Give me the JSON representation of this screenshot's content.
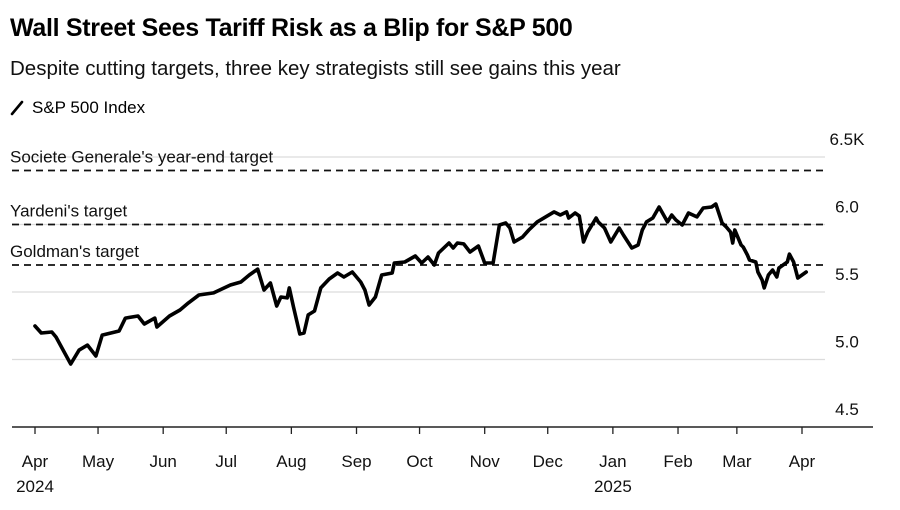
{
  "title": "Wall Street Sees Tariff Risk as a Blip for S&P 500",
  "subtitle": "Despite cutting targets, three key strategists still see gains this year",
  "legend": {
    "label": "S&P 500 Index",
    "icon": "line-icon"
  },
  "chart_data": {
    "type": "line",
    "title": "Wall Street Sees Tariff Risk as a Blip for S&P 500",
    "subtitle": "Despite cutting targets, three key strategists still see gains this year",
    "xlabel": "",
    "ylabel": "",
    "ylim": [
      4500,
      6500
    ],
    "grid": true,
    "legend_position": "top-left",
    "y_ticks": [
      {
        "value": 6500,
        "label": "6.5K"
      },
      {
        "value": 6000,
        "label": "6.0"
      },
      {
        "value": 5500,
        "label": "5.5"
      },
      {
        "value": 5000,
        "label": "5.0"
      },
      {
        "value": 4500,
        "label": "4.5"
      }
    ],
    "x_range": [
      "2024-04-01",
      "2025-05-06"
    ],
    "x_ticks": [
      {
        "date": "2024-04-01",
        "label": "Apr",
        "sublabel": "2024"
      },
      {
        "date": "2024-05-01",
        "label": "May",
        "sublabel": ""
      },
      {
        "date": "2024-06-01",
        "label": "Jun",
        "sublabel": ""
      },
      {
        "date": "2024-07-01",
        "label": "Jul",
        "sublabel": ""
      },
      {
        "date": "2024-08-01",
        "label": "Aug",
        "sublabel": ""
      },
      {
        "date": "2024-09-01",
        "label": "Sep",
        "sublabel": ""
      },
      {
        "date": "2024-10-01",
        "label": "Oct",
        "sublabel": ""
      },
      {
        "date": "2024-11-01",
        "label": "Nov",
        "sublabel": ""
      },
      {
        "date": "2024-12-01",
        "label": "Dec",
        "sublabel": ""
      },
      {
        "date": "2025-01-01",
        "label": "Jan",
        "sublabel": "2025"
      },
      {
        "date": "2025-02-01",
        "label": "Feb",
        "sublabel": ""
      },
      {
        "date": "2025-03-01",
        "label": "Mar",
        "sublabel": ""
      },
      {
        "date": "2025-04-01",
        "label": "Apr",
        "sublabel": ""
      }
    ],
    "reference_lines": [
      {
        "label": "Societe Generale's year-end target",
        "value": 6400
      },
      {
        "label": "Yardeni's target",
        "value": 6000
      },
      {
        "label": "Goldman's target",
        "value": 5700
      }
    ],
    "series": [
      {
        "name": "S&P 500 Index",
        "color": "#000000",
        "points": [
          [
            "2024-04-01",
            5248
          ],
          [
            "2024-04-04",
            5196
          ],
          [
            "2024-04-09",
            5204
          ],
          [
            "2024-04-11",
            5167
          ],
          [
            "2024-04-18",
            4967
          ],
          [
            "2024-04-22",
            5070
          ],
          [
            "2024-04-26",
            5107
          ],
          [
            "2024-04-30",
            5026
          ],
          [
            "2024-05-03",
            5181
          ],
          [
            "2024-05-11",
            5211
          ],
          [
            "2024-05-14",
            5307
          ],
          [
            "2024-05-20",
            5322
          ],
          [
            "2024-05-23",
            5263
          ],
          [
            "2024-05-28",
            5307
          ],
          [
            "2024-05-29",
            5241
          ],
          [
            "2024-06-04",
            5322
          ],
          [
            "2024-06-09",
            5367
          ],
          [
            "2024-06-13",
            5419
          ],
          [
            "2024-06-18",
            5478
          ],
          [
            "2024-06-25",
            5493
          ],
          [
            "2024-07-03",
            5552
          ],
          [
            "2024-07-08",
            5574
          ],
          [
            "2024-07-12",
            5626
          ],
          [
            "2024-07-16",
            5670
          ],
          [
            "2024-07-19",
            5515
          ],
          [
            "2024-07-22",
            5567
          ],
          [
            "2024-07-25",
            5396
          ],
          [
            "2024-07-27",
            5463
          ],
          [
            "2024-07-30",
            5456
          ],
          [
            "2024-07-31",
            5530
          ],
          [
            "2024-08-02",
            5389
          ],
          [
            "2024-08-05",
            5189
          ],
          [
            "2024-08-07",
            5196
          ],
          [
            "2024-08-09",
            5330
          ],
          [
            "2024-08-12",
            5359
          ],
          [
            "2024-08-15",
            5530
          ],
          [
            "2024-08-19",
            5596
          ],
          [
            "2024-08-23",
            5641
          ],
          [
            "2024-08-26",
            5611
          ],
          [
            "2024-08-30",
            5648
          ],
          [
            "2024-09-03",
            5574
          ],
          [
            "2024-09-05",
            5515
          ],
          [
            "2024-09-07",
            5404
          ],
          [
            "2024-09-10",
            5463
          ],
          [
            "2024-09-13",
            5626
          ],
          [
            "2024-09-18",
            5641
          ],
          [
            "2024-09-19",
            5715
          ],
          [
            "2024-09-24",
            5722
          ],
          [
            "2024-09-29",
            5767
          ],
          [
            "2024-10-02",
            5715
          ],
          [
            "2024-10-05",
            5759
          ],
          [
            "2024-10-08",
            5700
          ],
          [
            "2024-10-10",
            5789
          ],
          [
            "2024-10-15",
            5863
          ],
          [
            "2024-10-17",
            5826
          ],
          [
            "2024-10-19",
            5863
          ],
          [
            "2024-10-22",
            5856
          ],
          [
            "2024-10-25",
            5796
          ],
          [
            "2024-10-29",
            5841
          ],
          [
            "2024-11-01",
            5715
          ],
          [
            "2024-11-05",
            5715
          ],
          [
            "2024-11-08",
            5996
          ],
          [
            "2024-11-11",
            6011
          ],
          [
            "2024-11-13",
            5974
          ],
          [
            "2024-11-15",
            5870
          ],
          [
            "2024-11-19",
            5907
          ],
          [
            "2024-11-22",
            5959
          ],
          [
            "2024-11-26",
            6019
          ],
          [
            "2024-11-30",
            6056
          ],
          [
            "2024-12-04",
            6093
          ],
          [
            "2024-12-07",
            6070
          ],
          [
            "2024-12-10",
            6093
          ],
          [
            "2024-12-11",
            6048
          ],
          [
            "2024-12-14",
            6085
          ],
          [
            "2024-12-16",
            6063
          ],
          [
            "2024-12-18",
            5870
          ],
          [
            "2024-12-20",
            5944
          ],
          [
            "2024-12-24",
            6048
          ],
          [
            "2024-12-25",
            6019
          ],
          [
            "2024-12-28",
            5974
          ],
          [
            "2024-12-31",
            5870
          ],
          [
            "2025-01-04",
            5974
          ],
          [
            "2025-01-06",
            5922
          ],
          [
            "2025-01-10",
            5826
          ],
          [
            "2025-01-13",
            5848
          ],
          [
            "2025-01-15",
            5959
          ],
          [
            "2025-01-17",
            6019
          ],
          [
            "2025-01-20",
            6048
          ],
          [
            "2025-01-23",
            6130
          ],
          [
            "2025-01-27",
            6019
          ],
          [
            "2025-01-29",
            6070
          ],
          [
            "2025-01-31",
            6033
          ],
          [
            "2025-02-03",
            5996
          ],
          [
            "2025-02-06",
            6085
          ],
          [
            "2025-02-10",
            6056
          ],
          [
            "2025-02-13",
            6122
          ],
          [
            "2025-02-17",
            6130
          ],
          [
            "2025-02-19",
            6152
          ],
          [
            "2025-02-22",
            6011
          ],
          [
            "2025-02-24",
            5981
          ],
          [
            "2025-02-26",
            5944
          ],
          [
            "2025-02-27",
            5863
          ],
          [
            "2025-02-28",
            5959
          ],
          [
            "2025-03-03",
            5848
          ],
          [
            "2025-03-04",
            5833
          ],
          [
            "2025-03-06",
            5774
          ],
          [
            "2025-03-07",
            5737
          ],
          [
            "2025-03-10",
            5722
          ],
          [
            "2025-03-11",
            5648
          ],
          [
            "2025-03-13",
            5589
          ],
          [
            "2025-03-14",
            5530
          ],
          [
            "2025-03-16",
            5626
          ],
          [
            "2025-03-18",
            5663
          ],
          [
            "2025-03-20",
            5611
          ],
          [
            "2025-03-21",
            5678
          ],
          [
            "2025-03-23",
            5700
          ],
          [
            "2025-03-25",
            5722
          ],
          [
            "2025-03-26",
            5781
          ],
          [
            "2025-03-28",
            5722
          ],
          [
            "2025-03-30",
            5604
          ],
          [
            "2025-04-01",
            5626
          ],
          [
            "2025-04-03",
            5648
          ]
        ]
      }
    ]
  }
}
